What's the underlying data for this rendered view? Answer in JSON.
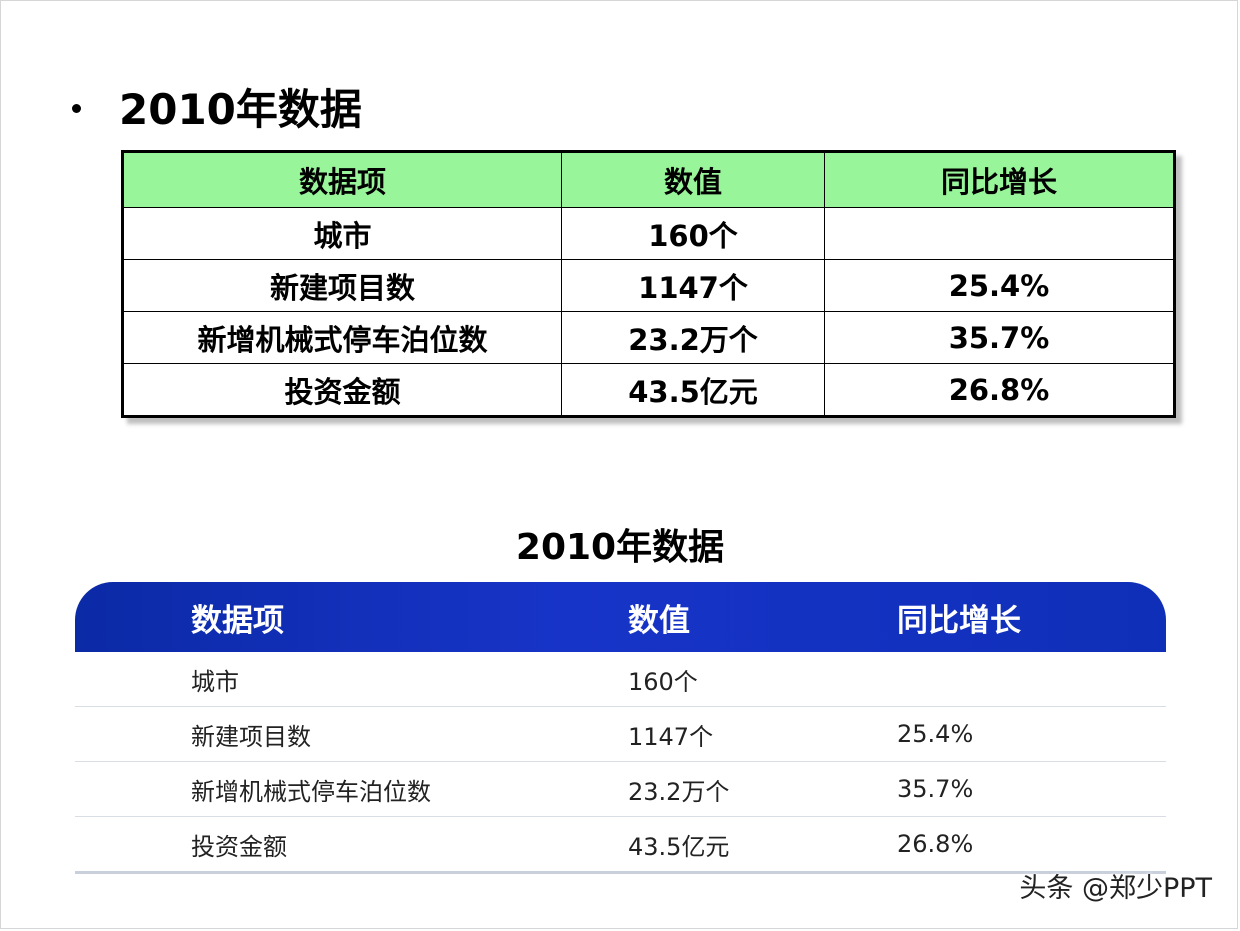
{
  "section1": {
    "title": "2010年数据",
    "headers": [
      "数据项",
      "数值",
      "同比增长"
    ],
    "rows": [
      [
        "城市",
        "160个",
        ""
      ],
      [
        "新建项目数",
        "1147个",
        "25.4%"
      ],
      [
        "新增机械式停车泊位数",
        "23.2万个",
        "35.7%"
      ],
      [
        "投资金额",
        "43.5亿元",
        "26.8%"
      ]
    ]
  },
  "section2": {
    "title": "2010年数据",
    "headers": [
      "数据项",
      "数值",
      "同比增长"
    ],
    "rows": [
      [
        "城市",
        "160个",
        ""
      ],
      [
        "新建项目数",
        "1147个",
        "25.4%"
      ],
      [
        "新增机械式停车泊位数",
        "23.2万个",
        "35.7%"
      ],
      [
        "投资金额",
        "43.5亿元",
        "26.8%"
      ]
    ]
  },
  "colors": {
    "table1_header_bg": "#99f59a",
    "table2_header_bg": "#1734c8"
  },
  "watermark": "头条 @郑少PPT"
}
